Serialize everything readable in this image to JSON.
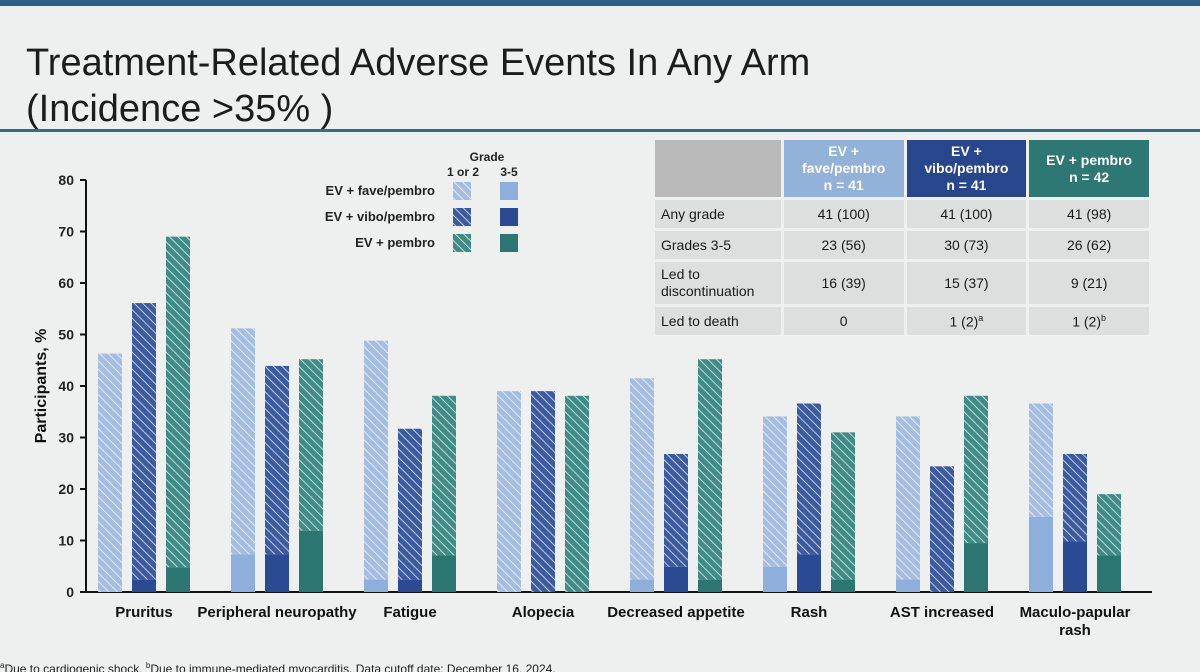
{
  "title_line1": "Treatment-Related Adverse Events In Any Arm",
  "title_line2": "(Incidence >35% )",
  "footnote": {
    "a_mark": "a",
    "a_text": "Due to cardiogenic shock. ",
    "b_mark": "b",
    "b_text": "Due to immune-mediated myocarditis. Data cutoff date: December 16, 2024."
  },
  "colors": {
    "fave_light": "#a4bde0",
    "fave_dark": "#8eaedb",
    "vibo_light": "#3c5a9e",
    "vibo_dark": "#2a4a93",
    "pembro_light": "#3f8b86",
    "pembro_dark": "#2c7671"
  },
  "table": {
    "headers": [
      "EV + fave/pembro n = 41",
      "EV + vibo/pembro n = 41",
      "EV + pembro n = 42"
    ],
    "header_lines": [
      [
        "EV +",
        "fave/pembro",
        "n = 41"
      ],
      [
        "EV +",
        "vibo/pembro",
        "n = 41"
      ],
      [
        "EV + pembro",
        "n = 42"
      ]
    ],
    "rows": [
      {
        "label": "Any grade",
        "values": [
          "41 (100)",
          "41 (100)",
          "41 (98)"
        ]
      },
      {
        "label": "Grades 3-5",
        "values": [
          "23 (56)",
          "30 (73)",
          "26 (62)"
        ]
      },
      {
        "label": "Led to discontinuation",
        "values": [
          "16 (39)",
          "15 (37)",
          "9 (21)"
        ]
      },
      {
        "label": "Led to death",
        "values": [
          "0",
          "1 (2)",
          "1 (2)"
        ],
        "sups": [
          "",
          "a",
          "b"
        ]
      }
    ]
  },
  "chart_data": {
    "type": "bar",
    "ylabel": "Participants, %",
    "ylim": [
      0,
      80
    ],
    "yticks": [
      0,
      10,
      20,
      30,
      40,
      50,
      60,
      70,
      80
    ],
    "legend_title": "Grade",
    "legend_col_labels": [
      "1 or 2",
      "3-5"
    ],
    "categories": [
      "Pruritus",
      "Peripheral neuropathy",
      "Fatigue",
      "Alopecia",
      "Decreased appetite",
      "Rash",
      "AST increased",
      [
        "Maculo-papular",
        "rash"
      ]
    ],
    "series": [
      {
        "name": "EV + fave/pembro",
        "total": [
          46.3,
          51.2,
          48.8,
          39.0,
          41.5,
          34.1,
          34.1,
          36.6
        ],
        "grade_3_5": [
          0,
          7.3,
          2.4,
          0,
          2.4,
          4.9,
          2.4,
          14.6
        ]
      },
      {
        "name": "EV + vibo/pembro",
        "total": [
          56.1,
          43.9,
          31.7,
          39.0,
          26.8,
          36.6,
          24.4,
          26.8
        ],
        "grade_3_5": [
          2.4,
          7.3,
          2.4,
          0,
          4.9,
          7.3,
          0,
          9.8
        ]
      },
      {
        "name": "EV + pembro",
        "total": [
          69.0,
          45.2,
          38.1,
          38.1,
          45.2,
          31.0,
          38.1,
          19.0
        ],
        "grade_3_5": [
          4.8,
          11.9,
          7.1,
          0,
          2.4,
          2.4,
          9.5,
          7.1
        ]
      }
    ]
  }
}
